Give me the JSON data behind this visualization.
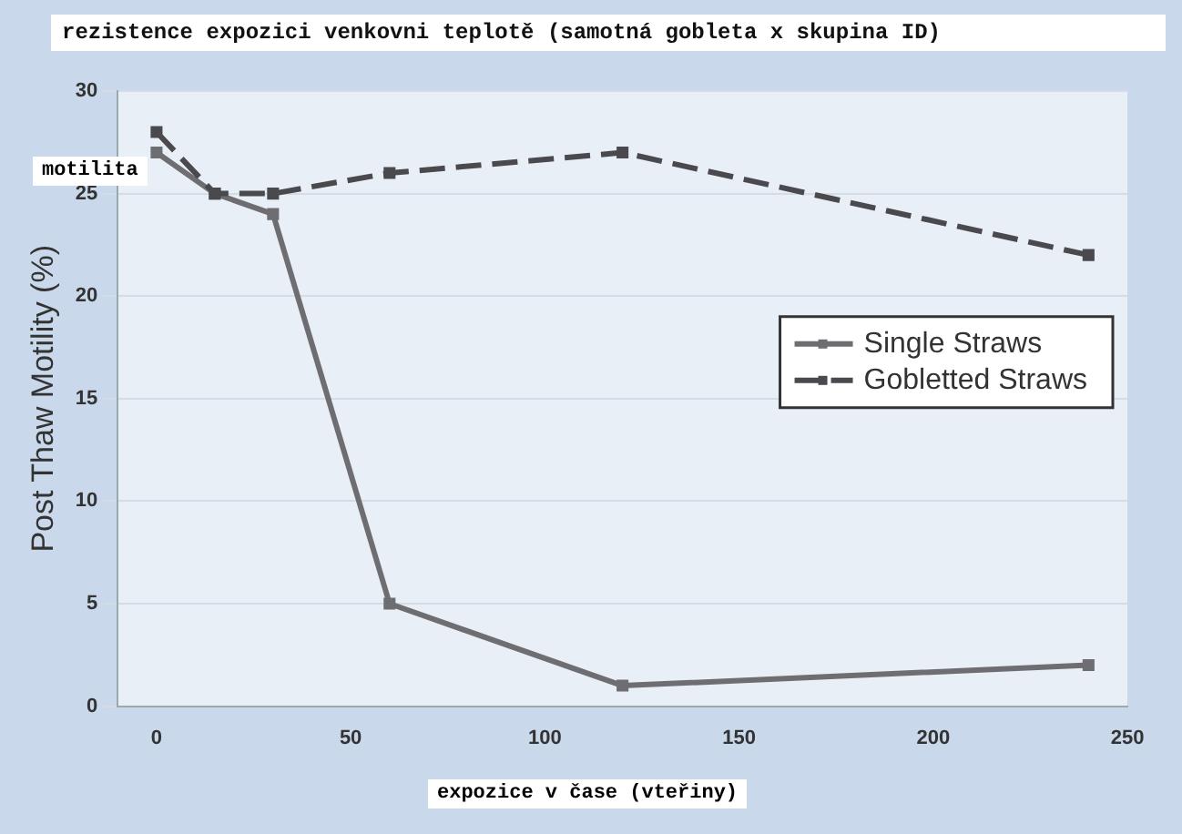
{
  "chart_data": {
    "type": "line",
    "title": "rezistence expozici venkovni teplotě (samotná gobleta x skupina ID)",
    "xlabel": "expozice v čase (vteřiny)",
    "ylabel": "Post Thaw Motility (%)",
    "annotations": [
      "motilita"
    ],
    "x": [
      0,
      15,
      30,
      60,
      120,
      240
    ],
    "series": [
      {
        "name": "Single Straws",
        "color": "#6e6e72",
        "values": [
          27,
          25,
          24,
          5,
          1,
          2
        ],
        "line_style": "solid"
      },
      {
        "name": "Gobletted Straws",
        "color": "#4a4a4e",
        "values": [
          28,
          25,
          25,
          26,
          27,
          22
        ],
        "line_style": "dashed"
      }
    ],
    "xlim": [
      -10,
      250
    ],
    "xticks": [
      0,
      50,
      100,
      150,
      200,
      250
    ],
    "ylim": [
      0,
      30
    ],
    "yticks": [
      0,
      5,
      10,
      15,
      20,
      25,
      30
    ],
    "grid": "y",
    "legend": "right",
    "marker": "square"
  }
}
